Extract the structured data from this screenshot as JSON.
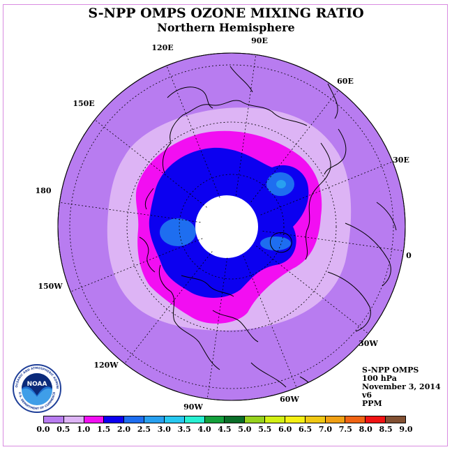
{
  "header": {
    "title": "S-NPP OMPS OZONE MIXING RATIO",
    "subtitle": "Northern Hemisphere"
  },
  "map": {
    "projection": "north polar stereographic",
    "longitude_labels": [
      "90E",
      "60E",
      "30E",
      "0",
      "30W",
      "60W",
      "90W",
      "120W",
      "150W",
      "180",
      "150E",
      "120E"
    ],
    "legend_colors": {
      "0.0-0.5": "#b87cf0",
      "0.5-1.0": "#ddb4f5",
      "1.0-1.5": "#f20ef2",
      "1.5-2.0": "#0c00f0",
      "2.0-2.5": "#1e6ef0"
    },
    "missing_data_color": "#ffffff"
  },
  "info": {
    "instrument": "S-NPP OMPS",
    "level": "100 hPa",
    "date": "November 3, 2014",
    "version": "v6",
    "units": "PPM"
  },
  "logo": {
    "text": "NOAA",
    "ring_top": "NATIONAL OCEANIC AND ATMOSPHERIC ADMINISTRATION",
    "ring_bottom": "U.S. DEPARTMENT OF COMMERCE"
  },
  "colorbar": {
    "ticks": [
      "0.0",
      "0.5",
      "1.0",
      "1.5",
      "2.0",
      "2.5",
      "3.0",
      "3.5",
      "4.0",
      "4.5",
      "5.0",
      "5.5",
      "6.0",
      "6.5",
      "7.0",
      "7.5",
      "8.0",
      "8.5",
      "9.0"
    ],
    "colors": [
      "#b87cf0",
      "#ddb4f5",
      "#f20ef2",
      "#0c00f0",
      "#1e6ef0",
      "#28a0f0",
      "#28c8f0",
      "#28f0d2",
      "#14a03c",
      "#0a6e28",
      "#96d21e",
      "#d2f014",
      "#f5f014",
      "#f0c814",
      "#f0a014",
      "#f06414",
      "#f01414",
      "#825032"
    ]
  }
}
